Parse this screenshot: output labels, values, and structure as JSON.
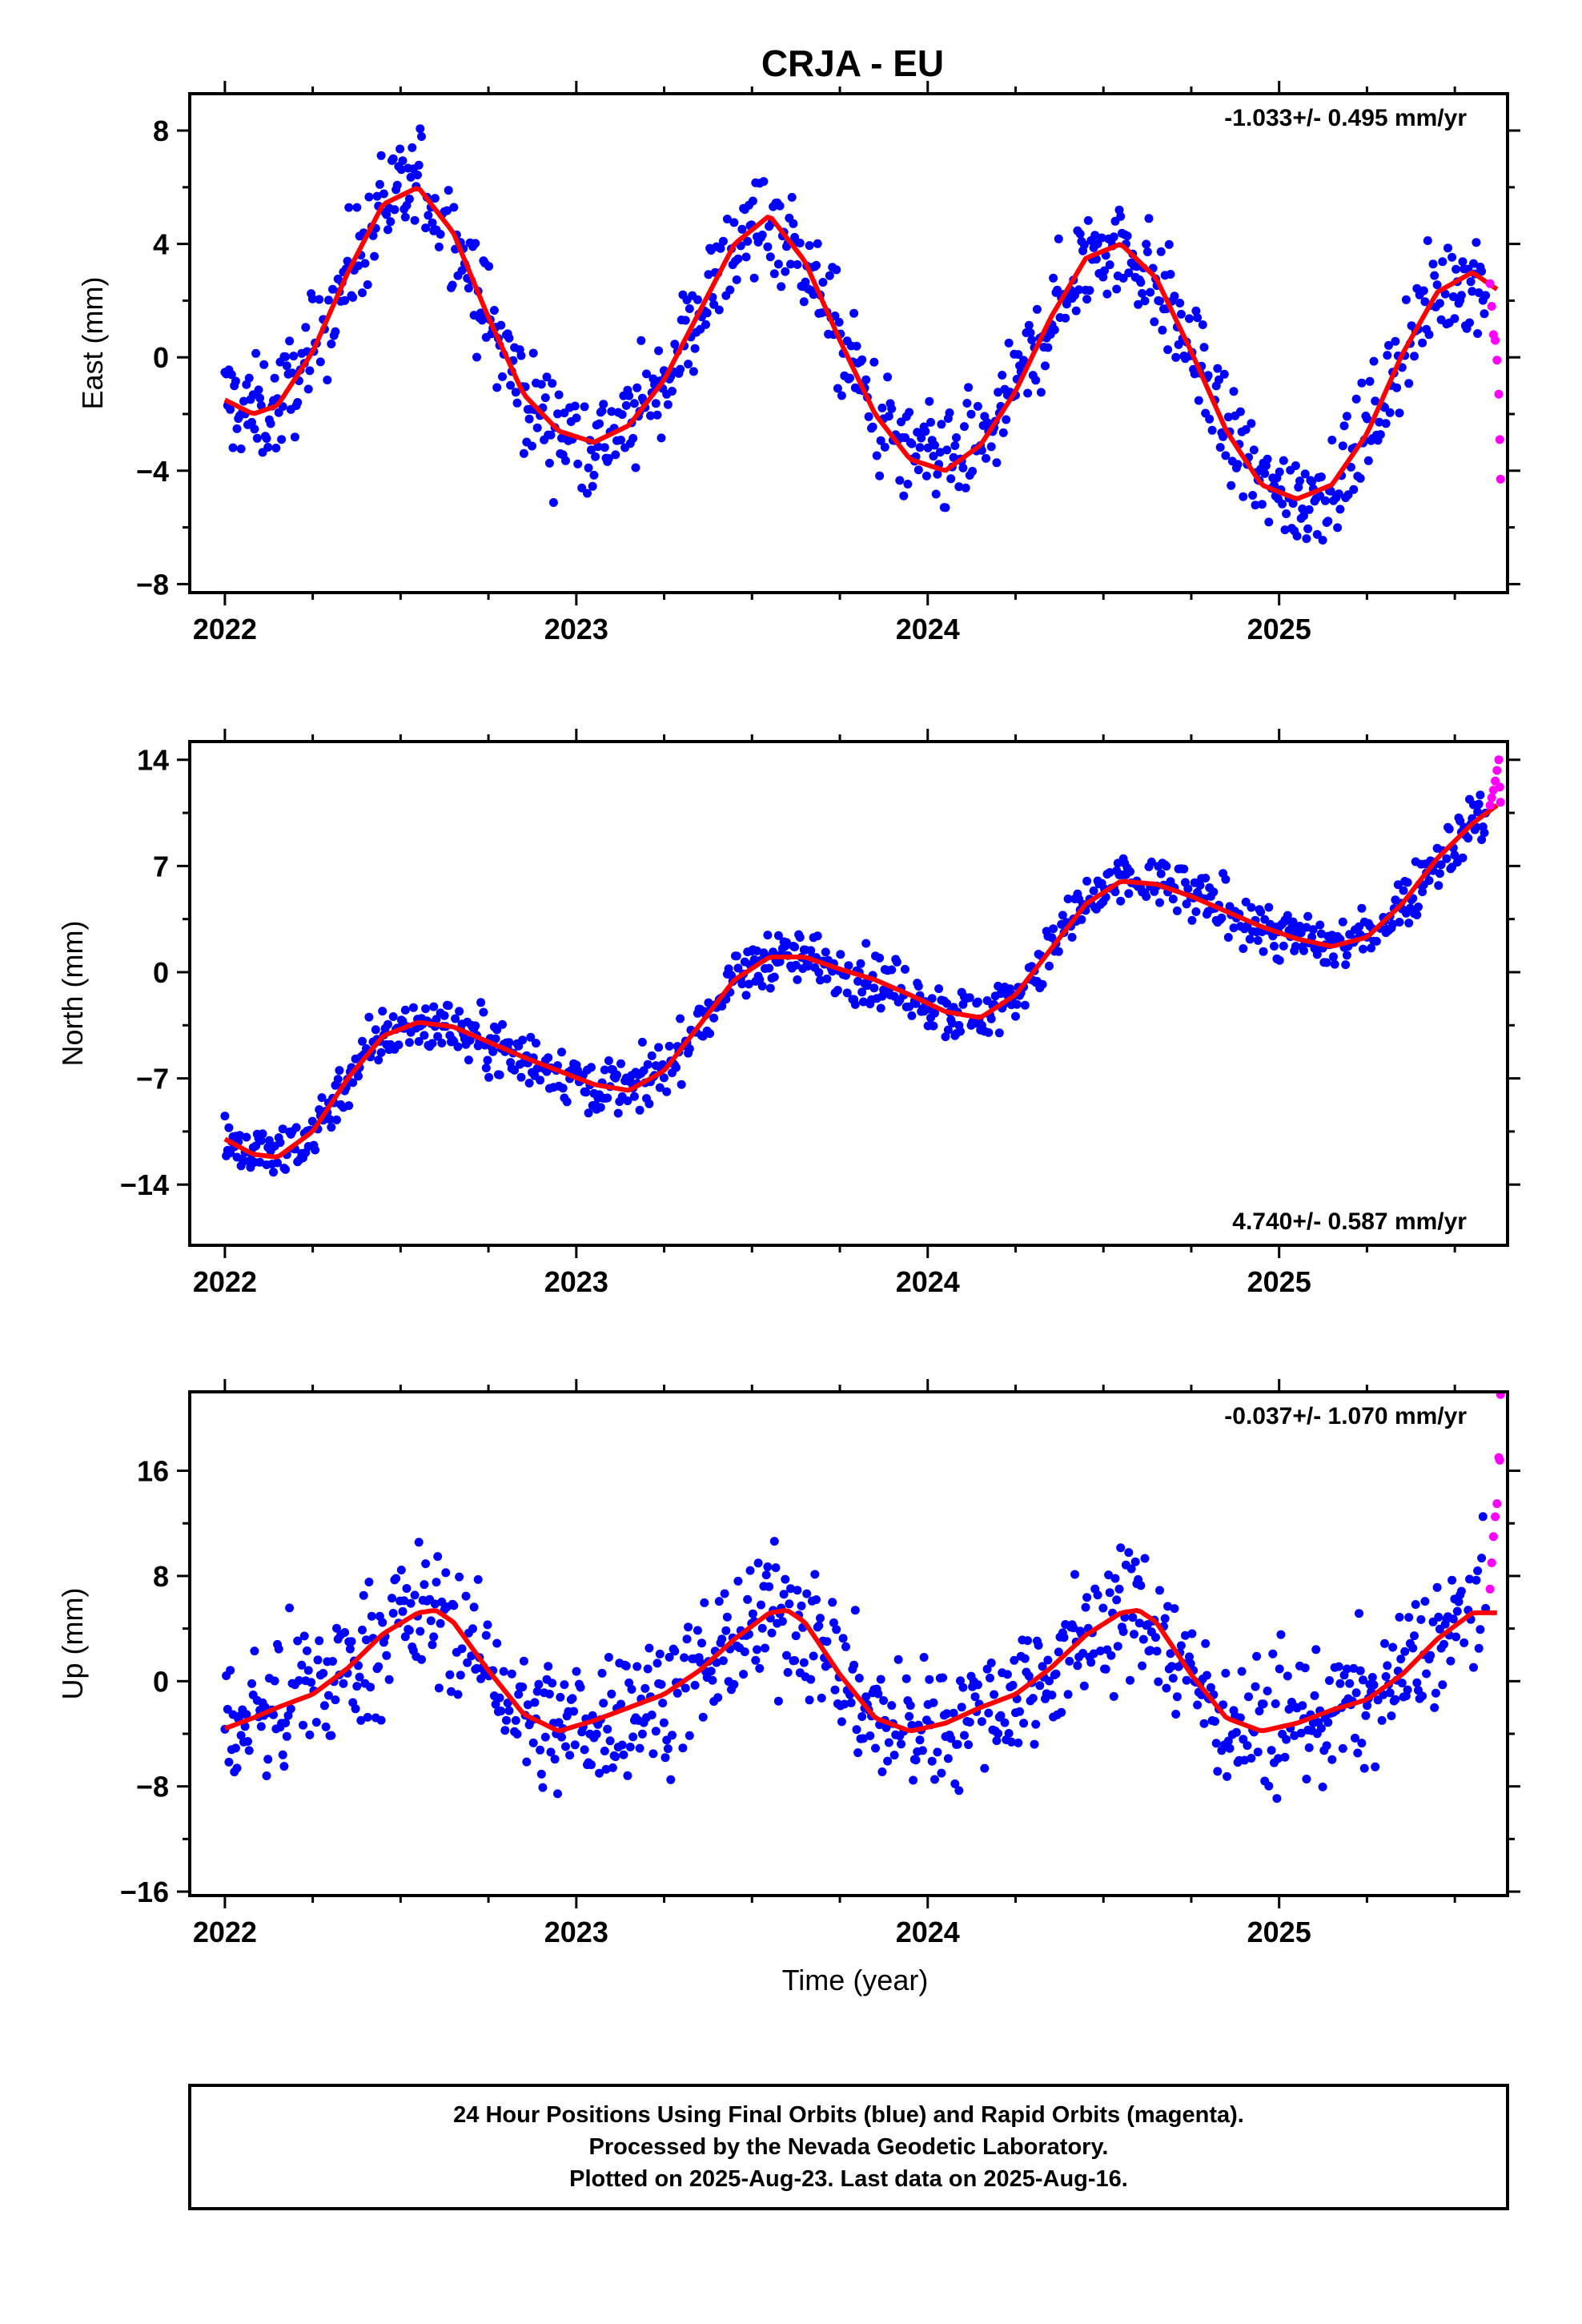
{
  "figure": {
    "title": "CRJA - EU",
    "xlabel": "Time (year)",
    "footer_lines": [
      "24 Hour Positions Using Final Orbits (blue) and Rapid Orbits (magenta).",
      "Processed by the Nevada Geodetic Laboratory.",
      "Plotted on 2025-Aug-23. Last data on 2025-Aug-16."
    ],
    "colors": {
      "final": "#0000ff",
      "rapid": "#ff00ff",
      "model": "#ff0000",
      "frame": "#000000"
    }
  },
  "chart_data": [
    {
      "type": "scatter",
      "component": "east",
      "ylabel": "East (mm)",
      "rate_text": "-1.033+/- 0.495 mm/yr",
      "rate_position": "top-right",
      "xlim": [
        2021.9,
        2025.65
      ],
      "ylim": [
        -8.3,
        9.3
      ],
      "xticks": [
        2022,
        2023,
        2024,
        2025
      ],
      "xticklabels": [
        "2022",
        "2023",
        "2024",
        "2025"
      ],
      "yticks": [
        -8,
        -4,
        0,
        4,
        8
      ],
      "yticklabels": [
        "−8",
        "−4",
        "0",
        "4",
        "8"
      ],
      "grid": false,
      "model": {
        "x": [
          2022.0,
          2022.08,
          2022.15,
          2022.25,
          2022.35,
          2022.45,
          2022.55,
          2022.65,
          2022.75,
          2022.85,
          2022.95,
          2023.05,
          2023.15,
          2023.25,
          2023.35,
          2023.45,
          2023.55,
          2023.65,
          2023.75,
          2023.85,
          2023.95,
          2024.05,
          2024.15,
          2024.25,
          2024.35,
          2024.45,
          2024.55,
          2024.65,
          2024.75,
          2024.85,
          2024.95,
          2025.05,
          2025.15,
          2025.25,
          2025.35,
          2025.45,
          2025.55,
          2025.62
        ],
        "y": [
          -1.5,
          -2.0,
          -1.7,
          0.2,
          3.0,
          5.4,
          6.0,
          4.4,
          1.4,
          -1.3,
          -2.6,
          -3.0,
          -2.4,
          -0.8,
          1.6,
          4.0,
          5.0,
          3.4,
          0.6,
          -2.0,
          -3.6,
          -4.0,
          -3.1,
          -1.2,
          1.4,
          3.5,
          4.0,
          2.8,
          0.2,
          -2.6,
          -4.5,
          -5.0,
          -4.5,
          -2.7,
          0.1,
          2.3,
          3.0,
          2.4
        ]
      },
      "final_amplitude": 1.3,
      "final_range": [
        2022.0,
        2025.59
      ],
      "final_sample_step_days": 1.4,
      "rapid": {
        "x": [
          2025.6,
          2025.605,
          2025.61,
          2025.615,
          2025.62,
          2025.625,
          2025.628,
          2025.63
        ],
        "y": [
          2.6,
          1.8,
          0.8,
          0.6,
          -0.1,
          -1.3,
          -2.9,
          -4.3
        ]
      }
    },
    {
      "type": "scatter",
      "component": "north",
      "ylabel": "North (mm)",
      "rate_text": "4.740+/- 0.587 mm/yr",
      "rate_position": "bottom-right",
      "xlim": [
        2021.9,
        2025.65
      ],
      "ylim": [
        -18.0,
        15.2
      ],
      "xticks": [
        2022,
        2023,
        2024,
        2025
      ],
      "xticklabels": [
        "2022",
        "2023",
        "2024",
        "2025"
      ],
      "yticks": [
        -14,
        -7,
        0,
        7,
        14
      ],
      "yticklabels": [
        "−14",
        "−7",
        "0",
        "7",
        "14"
      ],
      "grid": false,
      "model": {
        "x": [
          2022.0,
          2022.08,
          2022.15,
          2022.25,
          2022.35,
          2022.45,
          2022.55,
          2022.65,
          2022.75,
          2022.85,
          2022.95,
          2023.05,
          2023.15,
          2023.25,
          2023.35,
          2023.45,
          2023.55,
          2023.65,
          2023.75,
          2023.85,
          2023.95,
          2024.05,
          2024.15,
          2024.25,
          2024.35,
          2024.45,
          2024.55,
          2024.65,
          2024.75,
          2024.85,
          2024.95,
          2025.05,
          2025.15,
          2025.25,
          2025.35,
          2025.45,
          2025.55,
          2025.62
        ],
        "y": [
          -11.0,
          -12.0,
          -12.2,
          -10.5,
          -7.0,
          -4.2,
          -3.3,
          -3.6,
          -4.6,
          -5.6,
          -6.5,
          -7.4,
          -7.8,
          -6.5,
          -3.5,
          -0.5,
          1.0,
          1.0,
          0.2,
          -0.5,
          -1.5,
          -2.6,
          -3.0,
          -1.5,
          1.5,
          4.5,
          6.0,
          5.8,
          5.0,
          4.0,
          3.0,
          2.2,
          1.7,
          2.3,
          4.5,
          7.5,
          9.8,
          11.0
        ]
      },
      "final_amplitude": 1.3,
      "final_range": [
        2022.0,
        2025.59
      ],
      "final_sample_step_days": 1.4,
      "rapid": {
        "x": [
          2025.6,
          2025.605,
          2025.61,
          2025.615,
          2025.62,
          2025.625,
          2025.628,
          2025.63
        ],
        "y": [
          11.0,
          11.5,
          12.0,
          12.6,
          13.3,
          14.0,
          12.2,
          11.2
        ]
      }
    },
    {
      "type": "scatter",
      "component": "up",
      "ylabel": "Up (mm)",
      "rate_text": "-0.037+/- 1.070 mm/yr",
      "rate_position": "top-right",
      "xlim": [
        2021.9,
        2025.65
      ],
      "ylim": [
        -16.3,
        22.0
      ],
      "xticks": [
        2022,
        2023,
        2024,
        2025
      ],
      "xticklabels": [
        "2022",
        "2023",
        "2024",
        "2025"
      ],
      "yticks": [
        -16,
        -8,
        0,
        8,
        16
      ],
      "yticklabels": [
        "−16",
        "−8",
        "0",
        "8",
        "16"
      ],
      "grid": false,
      "model": {
        "x": [
          2022.0,
          2022.08,
          2022.15,
          2022.25,
          2022.35,
          2022.45,
          2022.55,
          2022.6,
          2022.65,
          2022.75,
          2022.85,
          2022.95,
          2023.05,
          2023.15,
          2023.25,
          2023.35,
          2023.45,
          2023.55,
          2023.6,
          2023.65,
          2023.75,
          2023.85,
          2023.95,
          2024.05,
          2024.15,
          2024.25,
          2024.35,
          2024.45,
          2024.55,
          2024.6,
          2024.65,
          2024.75,
          2024.85,
          2024.95,
          2025.05,
          2025.15,
          2025.25,
          2025.35,
          2025.45,
          2025.55,
          2025.62
        ],
        "y": [
          -3.6,
          -2.8,
          -2.0,
          -1.0,
          1.0,
          3.6,
          5.2,
          5.4,
          4.5,
          0.8,
          -2.5,
          -3.8,
          -3.0,
          -2.0,
          -1.0,
          0.8,
          3.2,
          5.2,
          5.4,
          4.5,
          0.5,
          -2.8,
          -3.8,
          -3.2,
          -2.0,
          -1.0,
          1.0,
          3.5,
          5.2,
          5.4,
          4.5,
          0.5,
          -2.8,
          -3.8,
          -3.2,
          -2.2,
          -1.4,
          0.5,
          3.2,
          5.2,
          5.2
        ]
      },
      "final_amplitude": 3.6,
      "final_range": [
        2022.0,
        2025.59
      ],
      "final_sample_step_days": 1.4,
      "rapid": {
        "x": [
          2025.6,
          2025.605,
          2025.61,
          2025.615,
          2025.62,
          2025.625,
          2025.628,
          2025.63
        ],
        "y": [
          7.0,
          9.0,
          11.0,
          12.5,
          13.5,
          17.0,
          16.8,
          21.8
        ]
      }
    }
  ]
}
